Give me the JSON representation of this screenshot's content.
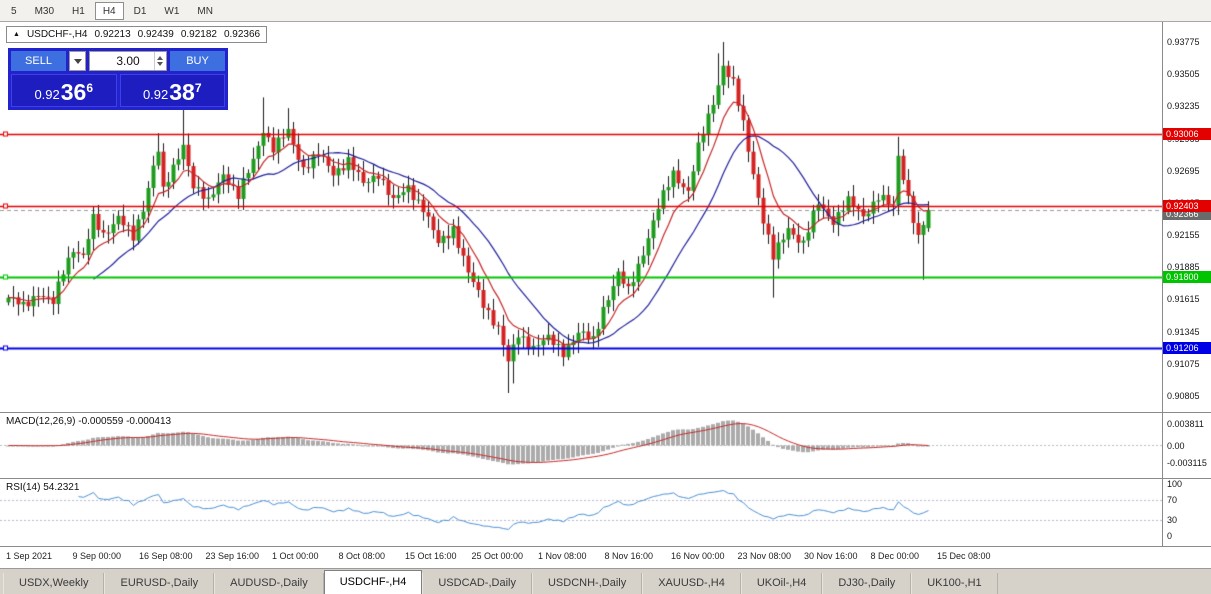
{
  "toolbar": {
    "timeframes": [
      "5",
      "M30",
      "H1",
      "H4",
      "D1",
      "W1",
      "MN"
    ],
    "active": "H4"
  },
  "symbol_box": {
    "arrow": "▲",
    "title": "USDCHF-,H4",
    "open": "0.92213",
    "high": "0.92439",
    "low": "0.92182",
    "close": "0.92366"
  },
  "trade_panel": {
    "sell_label": "SELL",
    "buy_label": "BUY",
    "lot_value": "3.00",
    "sell_price": {
      "small": "0.92",
      "big": "36",
      "sup": "6"
    },
    "buy_price": {
      "small": "0.92",
      "big": "38",
      "sup": "7"
    }
  },
  "indicators": {
    "macd_label": "MACD(12,26,9) -0.000559 -0.000413",
    "macd_axis": [
      {
        "label": "0.003811",
        "value": 0.003811
      },
      {
        "label": "0.00",
        "value": 0
      },
      {
        "label": "-0.003115",
        "value": -0.003115
      }
    ],
    "rsi_label": "RSI(14) 54.2321",
    "rsi_axis": [
      {
        "label": "100",
        "value": 100
      },
      {
        "label": "70",
        "value": 70
      },
      {
        "label": "30",
        "value": 30
      },
      {
        "label": "0",
        "value": 0
      }
    ]
  },
  "timeline_labels": [
    "1 Sep 2021",
    "9 Sep 00:00",
    "16 Sep 08:00",
    "23 Sep 16:00",
    "1 Oct 00:00",
    "8 Oct 08:00",
    "15 Oct 16:00",
    "25 Oct 00:00",
    "1 Nov 08:00",
    "8 Nov 16:00",
    "16 Nov 00:00",
    "23 Nov 08:00",
    "30 Nov 16:00",
    "8 Dec 00:00",
    "15 Dec 08:00"
  ],
  "tabs": {
    "items": [
      "USDX,Weekly",
      "EURUSD-,Daily",
      "AUDUSD-,Daily",
      "USDCHF-,H4",
      "USDCAD-,Daily",
      "USDCNH-,Daily",
      "XAUUSD-,H4",
      "UKOil-,H4",
      "DJ30-,Daily",
      "UK100-,H1"
    ],
    "active_index": 3
  },
  "chart_data": {
    "type": "candlestick+indicators",
    "symbol": "USDCHF-",
    "timeframe": "H4",
    "ohlc_current": {
      "open": 0.92213,
      "high": 0.92439,
      "low": 0.92182,
      "close": 0.92366
    },
    "bid": 0.92366,
    "bid_label": "0.92366",
    "price_axis_top": 0.93775,
    "price_axis_bottom": 0.90805,
    "price_axis_labels": [
      {
        "text": "0.93775",
        "price": 0.93775
      },
      {
        "text": "0.93505",
        "price": 0.93505
      },
      {
        "text": "0.93235",
        "price": 0.93235
      },
      {
        "text": "0.92965",
        "price": 0.92965
      },
      {
        "text": "0.92695",
        "price": 0.92695
      },
      {
        "text": "0.92425",
        "price": 0.92425
      },
      {
        "text": "0.92155",
        "price": 0.92155
      },
      {
        "text": "0.91885",
        "price": 0.91885
      },
      {
        "text": "0.91615",
        "price": 0.91615
      },
      {
        "text": "0.91345",
        "price": 0.91345
      },
      {
        "text": "0.91075",
        "price": 0.91075
      },
      {
        "text": "0.90805",
        "price": 0.90805
      }
    ],
    "hlines": [
      {
        "price": 0.93006,
        "color": "#e30000",
        "label": "0.93006",
        "width": 1.5
      },
      {
        "price": 0.92403,
        "color": "#e30000",
        "label": "0.92403",
        "width": 1.5
      },
      {
        "price": 0.918,
        "color": "#00c400",
        "label": "0.91800",
        "width": 2
      },
      {
        "price": 0.91206,
        "color": "#0000e6",
        "label": "0.91206",
        "width": 2
      }
    ],
    "rsi_levels": [
      70,
      30
    ],
    "candle_count": 185,
    "close_path_anchors": [
      [
        0,
        0.9163
      ],
      [
        3,
        0.9155
      ],
      [
        6,
        0.9168
      ],
      [
        9,
        0.9158
      ],
      [
        11,
        0.9185
      ],
      [
        13,
        0.9205
      ],
      [
        15,
        0.9198
      ],
      [
        17,
        0.9228
      ],
      [
        19,
        0.9215
      ],
      [
        22,
        0.9232
      ],
      [
        25,
        0.9212
      ],
      [
        27,
        0.9238
      ],
      [
        29,
        0.9275
      ],
      [
        30,
        0.9288
      ],
      [
        31,
        0.9252
      ],
      [
        33,
        0.927
      ],
      [
        35,
        0.9292
      ],
      [
        37,
        0.9258
      ],
      [
        40,
        0.9242
      ],
      [
        43,
        0.9268
      ],
      [
        46,
        0.9248
      ],
      [
        49,
        0.9278
      ],
      [
        51,
        0.9305
      ],
      [
        53,
        0.9288
      ],
      [
        56,
        0.9302
      ],
      [
        59,
        0.9272
      ],
      [
        62,
        0.9283
      ],
      [
        65,
        0.9268
      ],
      [
        68,
        0.9278
      ],
      [
        71,
        0.9258
      ],
      [
        74,
        0.9268
      ],
      [
        77,
        0.9243
      ],
      [
        80,
        0.9256
      ],
      [
        83,
        0.9238
      ],
      [
        86,
        0.9208
      ],
      [
        89,
        0.9222
      ],
      [
        92,
        0.9183
      ],
      [
        95,
        0.9158
      ],
      [
        98,
        0.9138
      ],
      [
        100,
        0.9108
      ],
      [
        102,
        0.9132
      ],
      [
        105,
        0.9122
      ],
      [
        108,
        0.9128
      ],
      [
        111,
        0.9118
      ],
      [
        114,
        0.9133
      ],
      [
        117,
        0.9127
      ],
      [
        119,
        0.9155
      ],
      [
        122,
        0.9182
      ],
      [
        124,
        0.9168
      ],
      [
        127,
        0.9202
      ],
      [
        130,
        0.9238
      ],
      [
        133,
        0.9268
      ],
      [
        136,
        0.9252
      ],
      [
        138,
        0.9288
      ],
      [
        141,
        0.9328
      ],
      [
        143,
        0.9358
      ],
      [
        145,
        0.9342
      ],
      [
        147,
        0.9308
      ],
      [
        149,
        0.9268
      ],
      [
        151,
        0.9228
      ],
      [
        153,
        0.9196
      ],
      [
        156,
        0.9222
      ],
      [
        159,
        0.9208
      ],
      [
        162,
        0.9242
      ],
      [
        165,
        0.9228
      ],
      [
        168,
        0.9243
      ],
      [
        171,
        0.9232
      ],
      [
        174,
        0.9248
      ],
      [
        177,
        0.9238
      ],
      [
        178,
        0.9282
      ],
      [
        180,
        0.9248
      ],
      [
        182,
        0.9212
      ],
      [
        184,
        0.9237
      ]
    ],
    "wick_overrides": [
      {
        "i": 30,
        "high": 0.9301
      },
      {
        "i": 35,
        "high": 0.9326
      },
      {
        "i": 51,
        "high": 0.9331
      },
      {
        "i": 56,
        "high": 0.9322
      },
      {
        "i": 100,
        "low": 0.9083
      },
      {
        "i": 101,
        "low": 0.9091
      },
      {
        "i": 142,
        "high": 0.9368
      },
      {
        "i": 143,
        "high": 0.93775
      },
      {
        "i": 153,
        "low": 0.9163
      },
      {
        "i": 178,
        "high": 0.9298
      },
      {
        "i": 183,
        "low": 0.9178
      }
    ],
    "colors": {
      "up": "#1e9c1e",
      "down": "#d32222",
      "wick": "#1a1a1a",
      "ma_fast": "#c62828",
      "ma_slow": "#20209c",
      "macd_hist": "#ababab",
      "macd_signal": "#c62828",
      "rsi": "#4a8fd2"
    }
  }
}
